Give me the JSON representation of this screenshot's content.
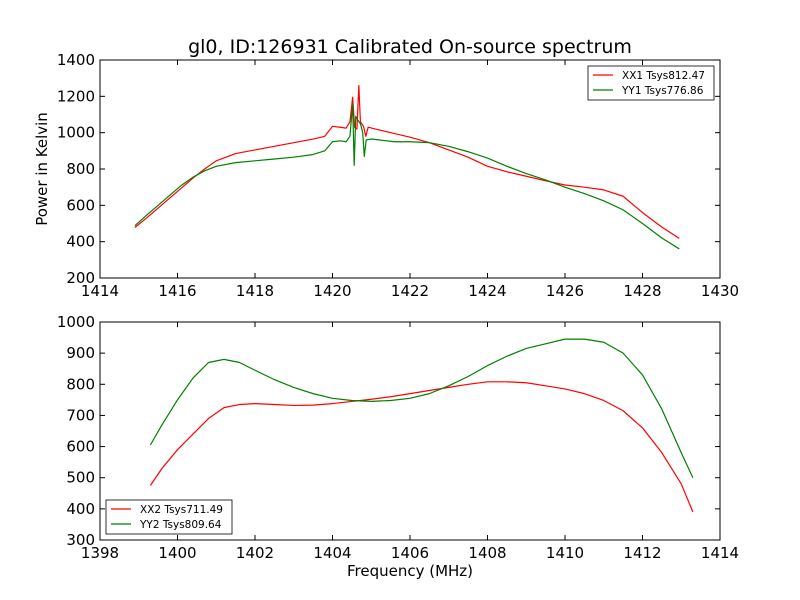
{
  "figure": {
    "title": "gl0, ID:126931 Calibrated On-source spectrum"
  },
  "chart_data": [
    {
      "type": "line",
      "title": "gl0, ID:126931 Calibrated On-source spectrum",
      "xlabel": "",
      "ylabel": "Power in Kelvin",
      "xlim": [
        1414,
        1430
      ],
      "ylim": [
        200,
        1400
      ],
      "xticks": [
        1414,
        1416,
        1418,
        1420,
        1422,
        1424,
        1426,
        1428,
        1430
      ],
      "yticks": [
        200,
        400,
        600,
        800,
        1000,
        1200,
        1400
      ],
      "grid": false,
      "legend_position": "top-right",
      "series": [
        {
          "name": "XX1 Tsys812.47",
          "color": "#ff0000",
          "points": [
            [
              1414.9,
              478
            ],
            [
              1415.2,
              530
            ],
            [
              1415.5,
              585
            ],
            [
              1415.8,
              640
            ],
            [
              1416.1,
              695
            ],
            [
              1416.4,
              750
            ],
            [
              1416.7,
              800
            ],
            [
              1417.0,
              845
            ],
            [
              1417.5,
              885
            ],
            [
              1418.0,
              905
            ],
            [
              1418.5,
              925
            ],
            [
              1419.0,
              945
            ],
            [
              1419.5,
              965
            ],
            [
              1419.8,
              980
            ],
            [
              1420.0,
              1035
            ],
            [
              1420.2,
              1030
            ],
            [
              1420.35,
              1025
            ],
            [
              1420.45,
              1060
            ],
            [
              1420.52,
              1195
            ],
            [
              1420.57,
              1030
            ],
            [
              1420.63,
              1020
            ],
            [
              1420.68,
              1260
            ],
            [
              1420.72,
              1060
            ],
            [
              1420.8,
              1035
            ],
            [
              1420.86,
              980
            ],
            [
              1420.92,
              1030
            ],
            [
              1421.2,
              1015
            ],
            [
              1421.6,
              995
            ],
            [
              1422.0,
              975
            ],
            [
              1422.5,
              945
            ],
            [
              1423.0,
              905
            ],
            [
              1423.5,
              865
            ],
            [
              1424.0,
              815
            ],
            [
              1424.5,
              785
            ],
            [
              1425.0,
              760
            ],
            [
              1425.5,
              735
            ],
            [
              1426.0,
              712
            ],
            [
              1426.5,
              700
            ],
            [
              1427.0,
              685
            ],
            [
              1427.5,
              650
            ],
            [
              1428.0,
              560
            ],
            [
              1428.5,
              480
            ],
            [
              1428.95,
              418
            ]
          ]
        },
        {
          "name": "YY1 Tsys776.86",
          "color": "#008000",
          "points": [
            [
              1414.9,
              488
            ],
            [
              1415.2,
              545
            ],
            [
              1415.5,
              600
            ],
            [
              1415.8,
              655
            ],
            [
              1416.1,
              710
            ],
            [
              1416.4,
              755
            ],
            [
              1416.7,
              790
            ],
            [
              1417.0,
              815
            ],
            [
              1417.5,
              835
            ],
            [
              1418.0,
              845
            ],
            [
              1418.5,
              855
            ],
            [
              1419.0,
              865
            ],
            [
              1419.5,
              880
            ],
            [
              1419.8,
              900
            ],
            [
              1420.0,
              950
            ],
            [
              1420.2,
              955
            ],
            [
              1420.35,
              950
            ],
            [
              1420.45,
              980
            ],
            [
              1420.52,
              1160
            ],
            [
              1420.56,
              820
            ],
            [
              1420.6,
              1090
            ],
            [
              1420.65,
              1070
            ],
            [
              1420.72,
              1050
            ],
            [
              1420.78,
              1000
            ],
            [
              1420.82,
              870
            ],
            [
              1420.87,
              960
            ],
            [
              1421.0,
              965
            ],
            [
              1421.6,
              950
            ],
            [
              1422.0,
              950
            ],
            [
              1422.5,
              945
            ],
            [
              1423.0,
              925
            ],
            [
              1423.5,
              895
            ],
            [
              1424.0,
              860
            ],
            [
              1424.5,
              815
            ],
            [
              1425.0,
              775
            ],
            [
              1425.5,
              740
            ],
            [
              1426.0,
              700
            ],
            [
              1426.5,
              665
            ],
            [
              1427.0,
              625
            ],
            [
              1427.5,
              575
            ],
            [
              1428.0,
              500
            ],
            [
              1428.5,
              420
            ],
            [
              1428.95,
              360
            ]
          ]
        }
      ]
    },
    {
      "type": "line",
      "title": "",
      "xlabel": "Frequency (MHz)",
      "ylabel": "",
      "xlim": [
        1398,
        1414
      ],
      "ylim": [
        300,
        1000
      ],
      "xticks": [
        1398,
        1400,
        1402,
        1404,
        1406,
        1408,
        1410,
        1412,
        1414
      ],
      "yticks": [
        300,
        400,
        500,
        600,
        700,
        800,
        900,
        1000
      ],
      "grid": false,
      "legend_position": "bottom-left",
      "series": [
        {
          "name": "XX2 Tsys711.49",
          "color": "#ff0000",
          "points": [
            [
              1399.3,
              475
            ],
            [
              1399.6,
              530
            ],
            [
              1400.0,
              590
            ],
            [
              1400.4,
              640
            ],
            [
              1400.8,
              690
            ],
            [
              1401.2,
              725
            ],
            [
              1401.6,
              735
            ],
            [
              1402.0,
              738
            ],
            [
              1402.5,
              735
            ],
            [
              1403.0,
              732
            ],
            [
              1403.5,
              733
            ],
            [
              1404.0,
              738
            ],
            [
              1404.5,
              745
            ],
            [
              1405.0,
              752
            ],
            [
              1405.5,
              760
            ],
            [
              1406.0,
              770
            ],
            [
              1406.5,
              780
            ],
            [
              1407.0,
              790
            ],
            [
              1407.5,
              800
            ],
            [
              1408.0,
              808
            ],
            [
              1408.5,
              808
            ],
            [
              1409.0,
              805
            ],
            [
              1409.5,
              795
            ],
            [
              1410.0,
              785
            ],
            [
              1410.5,
              770
            ],
            [
              1411.0,
              748
            ],
            [
              1411.5,
              715
            ],
            [
              1412.0,
              660
            ],
            [
              1412.5,
              580
            ],
            [
              1413.0,
              480
            ],
            [
              1413.3,
              390
            ]
          ]
        },
        {
          "name": "YY2 Tsys809.64",
          "color": "#008000",
          "points": [
            [
              1399.3,
              605
            ],
            [
              1399.6,
              670
            ],
            [
              1400.0,
              750
            ],
            [
              1400.4,
              820
            ],
            [
              1400.8,
              870
            ],
            [
              1401.2,
              880
            ],
            [
              1401.6,
              870
            ],
            [
              1402.0,
              845
            ],
            [
              1402.5,
              815
            ],
            [
              1403.0,
              790
            ],
            [
              1403.5,
              770
            ],
            [
              1404.0,
              755
            ],
            [
              1404.5,
              748
            ],
            [
              1405.0,
              745
            ],
            [
              1405.5,
              748
            ],
            [
              1406.0,
              755
            ],
            [
              1406.5,
              770
            ],
            [
              1407.0,
              795
            ],
            [
              1407.5,
              825
            ],
            [
              1408.0,
              860
            ],
            [
              1408.5,
              890
            ],
            [
              1409.0,
              915
            ],
            [
              1409.5,
              930
            ],
            [
              1410.0,
              945
            ],
            [
              1410.5,
              945
            ],
            [
              1411.0,
              935
            ],
            [
              1411.5,
              900
            ],
            [
              1412.0,
              830
            ],
            [
              1412.5,
              720
            ],
            [
              1413.0,
              580
            ],
            [
              1413.3,
              500
            ]
          ]
        }
      ]
    }
  ]
}
